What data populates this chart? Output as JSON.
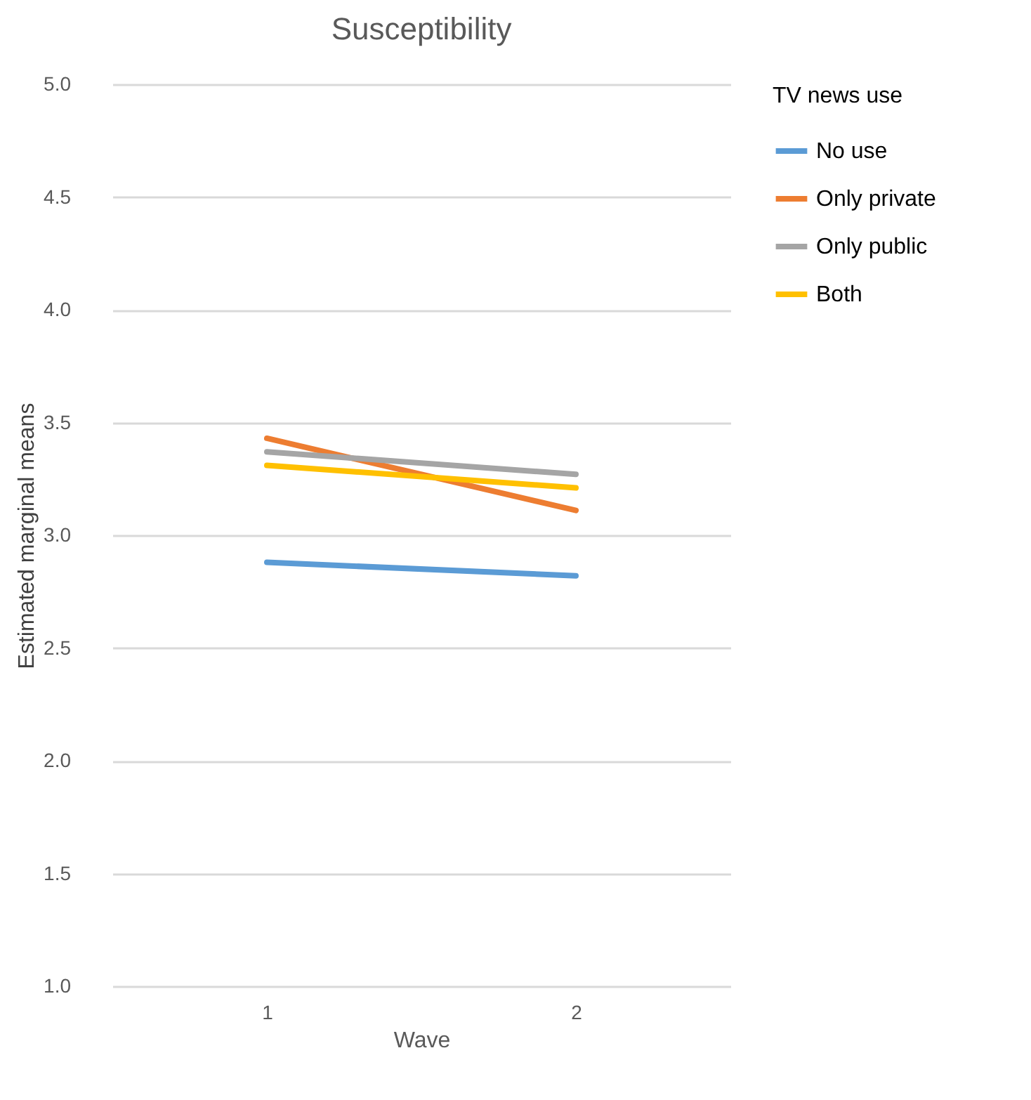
{
  "chart_data": {
    "type": "line",
    "title": "Susceptibility",
    "xlabel": "Wave",
    "ylabel": "Estimated marginal means",
    "legend_title": "TV news use",
    "categories": [
      "1",
      "2"
    ],
    "series": [
      {
        "name": "No use",
        "color": "#5b9bd5",
        "values": [
          2.88,
          2.82
        ]
      },
      {
        "name": "Only private",
        "color": "#ed7d31",
        "values": [
          3.43,
          3.11
        ]
      },
      {
        "name": "Only public",
        "color": "#a5a5a5",
        "values": [
          3.37,
          3.27
        ]
      },
      {
        "name": "Both",
        "color": "#ffc000",
        "values": [
          3.31,
          3.21
        ]
      }
    ],
    "ylim": [
      1.0,
      5.0
    ],
    "yticks": [
      {
        "value": 1.0,
        "label": "1.0"
      },
      {
        "value": 1.5,
        "label": "1.5"
      },
      {
        "value": 2.0,
        "label": "2.0"
      },
      {
        "value": 2.5,
        "label": "2.5"
      },
      {
        "value": 3.0,
        "label": "3.0"
      },
      {
        "value": 3.5,
        "label": "3.5"
      },
      {
        "value": 4.0,
        "label": "4.0"
      },
      {
        "value": 4.5,
        "label": "4.5"
      },
      {
        "value": 5.0,
        "label": "5.0"
      }
    ],
    "grid": "y",
    "legend": "right",
    "marker": "none",
    "line_style": "solid"
  }
}
